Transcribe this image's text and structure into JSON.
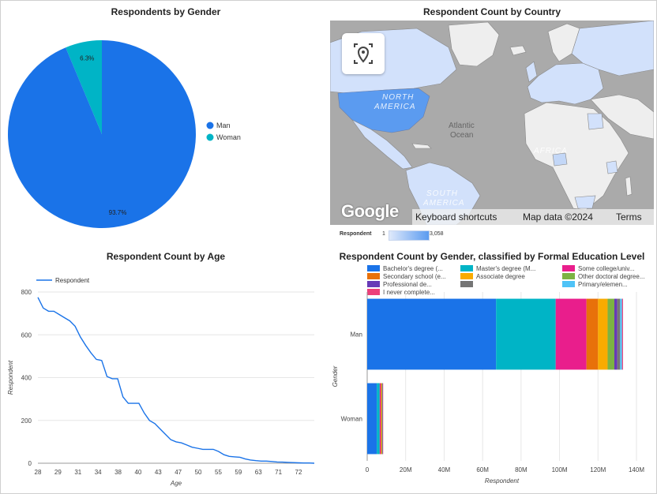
{
  "colors": {
    "primary": "#1a73e8",
    "secondary": "#00b4c6",
    "map_land": "#eeeeee",
    "map_water": "#aaaaaa",
    "map_high": "#5b9bf0",
    "map_low": "#d2e1fb"
  },
  "chart_data": [
    {
      "type": "pie",
      "title": "Respondents by Gender",
      "categories": [
        "Man",
        "Woman"
      ],
      "values": [
        93.7,
        6.3
      ],
      "data_labels": [
        "93.7%",
        "6.3%"
      ],
      "colors": [
        "#1a73e8",
        "#00b4c6"
      ],
      "legend": "right"
    },
    {
      "type": "map",
      "title": "Respondent Count by Country",
      "legend_label": "Respondent",
      "legend_min": "1",
      "legend_max": "3,058",
      "labels": {
        "north_america": [
          "NORTH",
          "AMERICA"
        ],
        "south_america": [
          "SOUTH",
          "AMERICA"
        ],
        "africa": "AFRICA",
        "ocean": [
          "Atlantic",
          "Ocean"
        ]
      },
      "attribution": {
        "logo": "Google",
        "shortcuts": "Keyboard shortcuts",
        "map_data": "Map data ©2024",
        "terms": "Terms"
      }
    },
    {
      "type": "line",
      "title": "Respondent Count by Age",
      "series": [
        {
          "name": "Respondent",
          "values": [
            775,
            725,
            710,
            710,
            695,
            680,
            665,
            640,
            590,
            550,
            515,
            485,
            480,
            405,
            395,
            395,
            310,
            280,
            280,
            280,
            235,
            200,
            185,
            160,
            135,
            110,
            100,
            95,
            85,
            75,
            70,
            65,
            65,
            65,
            55,
            40,
            32,
            30,
            28,
            20,
            15,
            12,
            10,
            10,
            8,
            6,
            5,
            4,
            3,
            2,
            1,
            1,
            0
          ]
        }
      ],
      "x_tick_labels": [
        "28",
        "29",
        "31",
        "34",
        "38",
        "40",
        "43",
        "47",
        "50",
        "55",
        "59",
        "63",
        "71",
        "72"
      ],
      "xlabel": "Age",
      "ylabel": "Respondent",
      "yticks": [
        0,
        200,
        400,
        600,
        800
      ],
      "ylim": [
        0,
        800
      ],
      "legend": "top-left"
    },
    {
      "type": "bar",
      "orientation": "horizontal",
      "stacked": true,
      "title": "Respondent Count by Gender, classified by Formal Education Level",
      "categories": [
        "Man",
        "Woman"
      ],
      "series": [
        {
          "name": "Bachelor's degree (...",
          "color": "#1a73e8",
          "values": [
            67000000,
            5000000
          ]
        },
        {
          "name": "Master's degree (M...",
          "color": "#00b4c6",
          "values": [
            31000000,
            1500000
          ]
        },
        {
          "name": "Some college/univ...",
          "color": "#e91e8c",
          "values": [
            16000000,
            600000
          ]
        },
        {
          "name": "Secondary school (e...",
          "color": "#e8710a",
          "values": [
            6000000,
            300000
          ]
        },
        {
          "name": "Associate degree",
          "color": "#f9ab00",
          "values": [
            5000000,
            200000
          ]
        },
        {
          "name": "Other doctoral degree...",
          "color": "#7cb342",
          "values": [
            3500000,
            200000
          ]
        },
        {
          "name": "Professional de...",
          "color": "#673ab7",
          "values": [
            1500000,
            100000
          ]
        },
        {
          "name": "",
          "color": "#757575",
          "values": [
            1500000,
            100000
          ]
        },
        {
          "name": "Primary/elemen...",
          "color": "#4fc3f7",
          "values": [
            1000000,
            100000
          ]
        },
        {
          "name": "I never complete...",
          "color": "#ec407a",
          "values": [
            500000,
            50000
          ]
        }
      ],
      "x_tick_labels": [
        "0",
        "20M",
        "40M",
        "60M",
        "80M",
        "100M",
        "120M",
        "140M"
      ],
      "xlim": [
        0,
        140000000
      ],
      "xlabel": "Respondent",
      "ylabel": "Gender",
      "legend": "top",
      "grid": true
    }
  ]
}
